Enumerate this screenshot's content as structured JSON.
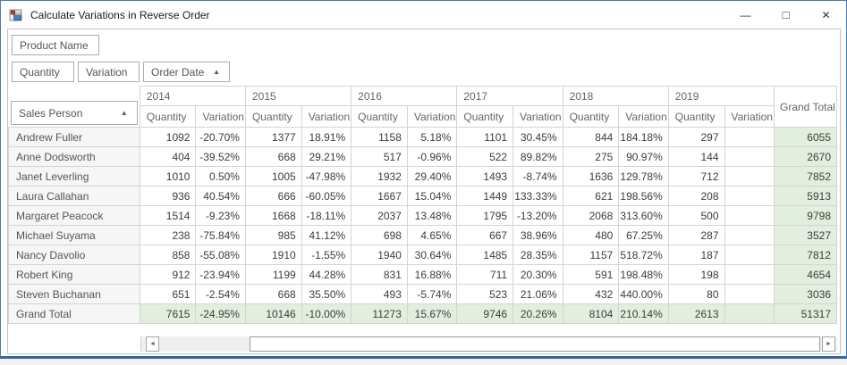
{
  "window": {
    "title": "Calculate Variations in Reverse Order",
    "minimize_glyph": "—",
    "maximize_glyph": "□",
    "close_glyph": "✕"
  },
  "icons": {
    "sort_asc": "▲",
    "scroll_left": "◄",
    "scroll_right": "►"
  },
  "filter_area": {
    "product_field": "Product Name"
  },
  "data_fields": {
    "quantity": "Quantity",
    "variation": "Variation",
    "order_date": "Order Date"
  },
  "row_area": {
    "label": "Sales Person"
  },
  "pivot": {
    "years": [
      "2014",
      "2015",
      "2016",
      "2017",
      "2018",
      "2019"
    ],
    "sub_columns": [
      "Quantity",
      "Variation"
    ],
    "grand_total_label": "Grand Total",
    "rows": [
      {
        "name": "Andrew Fuller",
        "cells": [
          "1092",
          "-20.70%",
          "1377",
          "18.91%",
          "1158",
          "5.18%",
          "1101",
          "30.45%",
          "844",
          "184.18%",
          "297",
          ""
        ],
        "total": "6055"
      },
      {
        "name": "Anne Dodsworth",
        "cells": [
          "404",
          "-39.52%",
          "668",
          "29.21%",
          "517",
          "-0.96%",
          "522",
          "89.82%",
          "275",
          "90.97%",
          "144",
          ""
        ],
        "total": "2670"
      },
      {
        "name": "Janet Leverling",
        "cells": [
          "1010",
          "0.50%",
          "1005",
          "-47.98%",
          "1932",
          "29.40%",
          "1493",
          "-8.74%",
          "1636",
          "129.78%",
          "712",
          ""
        ],
        "total": "7852"
      },
      {
        "name": "Laura Callahan",
        "cells": [
          "936",
          "40.54%",
          "666",
          "-60.05%",
          "1667",
          "15.04%",
          "1449",
          "133.33%",
          "621",
          "198.56%",
          "208",
          ""
        ],
        "total": "5913"
      },
      {
        "name": "Margaret Peacock",
        "cells": [
          "1514",
          "-9.23%",
          "1668",
          "-18.11%",
          "2037",
          "13.48%",
          "1795",
          "-13.20%",
          "2068",
          "313.60%",
          "500",
          ""
        ],
        "total": "9798"
      },
      {
        "name": "Michael Suyama",
        "cells": [
          "238",
          "-75.84%",
          "985",
          "41.12%",
          "698",
          "4.65%",
          "667",
          "38.96%",
          "480",
          "67.25%",
          "287",
          ""
        ],
        "total": "3527"
      },
      {
        "name": "Nancy Davolio",
        "cells": [
          "858",
          "-55.08%",
          "1910",
          "-1.55%",
          "1940",
          "30.64%",
          "1485",
          "28.35%",
          "1157",
          "518.72%",
          "187",
          ""
        ],
        "total": "7812"
      },
      {
        "name": "Robert King",
        "cells": [
          "912",
          "-23.94%",
          "1199",
          "44.28%",
          "831",
          "16.88%",
          "711",
          "20.30%",
          "591",
          "198.48%",
          "198",
          ""
        ],
        "total": "4654"
      },
      {
        "name": "Steven Buchanan",
        "cells": [
          "651",
          "-2.54%",
          "668",
          "35.50%",
          "493",
          "-5.74%",
          "523",
          "21.06%",
          "432",
          "440.00%",
          "80",
          ""
        ],
        "total": "3036"
      },
      {
        "name": "Grand Total",
        "is_total": true,
        "cells": [
          "7615",
          "-24.95%",
          "10146",
          "-10.00%",
          "11273",
          "15.67%",
          "9746",
          "20.26%",
          "8104",
          "210.14%",
          "2613",
          ""
        ],
        "total": "51317"
      }
    ]
  },
  "colors": {
    "window_border": "#4a7ab5",
    "grand_total_bg": "#e2efdf",
    "grid_border": "#d4d4d4",
    "header_text": "#666666",
    "cell_text": "#3c3c3c"
  }
}
